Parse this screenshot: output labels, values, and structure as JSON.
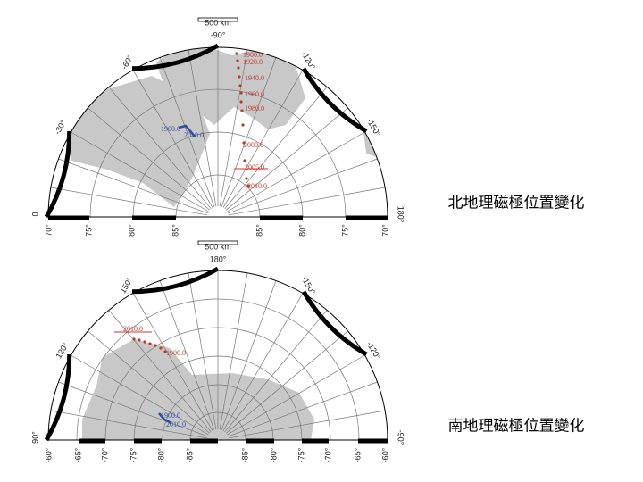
{
  "north_map": {
    "scale_label": "500 km",
    "top_label": "-90°",
    "longitude_labels": [
      "-60°",
      "-120°",
      "-30°",
      "-150°",
      "0",
      "180°"
    ],
    "latitude_labels": [
      "70°",
      "75°",
      "80°",
      "85°",
      "85°",
      "80°",
      "75°",
      "70°"
    ],
    "red_labels": [
      "1900.0",
      "1920.0",
      "1940.0",
      "1960.0",
      "1980.0",
      "2000.0",
      "2005.0",
      "2010.0"
    ],
    "blue_labels": [
      "1900.0",
      "2010.0"
    ],
    "caption": "北地理磁極位置變化"
  },
  "south_map": {
    "scale_label": "500 km",
    "top_label": "180°",
    "longitude_labels": [
      "150°",
      "-150°",
      "120°",
      "-120°",
      "90°",
      "-90°"
    ],
    "latitude_labels": [
      "-60°",
      "-65°",
      "-70°",
      "-75°",
      "-80°",
      "-85°",
      "-85°",
      "-80°",
      "-75°",
      "-70°",
      "-65°",
      "-60°"
    ],
    "red_labels": [
      "2010.0",
      "1900.0"
    ],
    "blue_labels": [
      "1900.0",
      "2010.0"
    ],
    "caption": "南地理磁極位置變化"
  }
}
